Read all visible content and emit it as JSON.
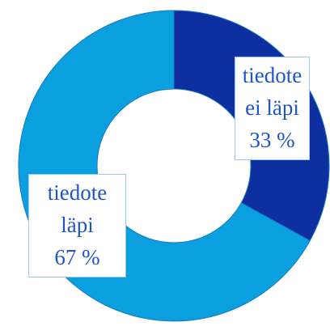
{
  "chart_data": {
    "type": "donut",
    "categories": [
      "tiedote ei läpi",
      "tiedote läpi"
    ],
    "values": [
      33,
      67
    ],
    "value_labels": [
      "33 %",
      "67 %"
    ],
    "colors": [
      "#0d2f9f",
      "#0aa0e0"
    ]
  }
}
